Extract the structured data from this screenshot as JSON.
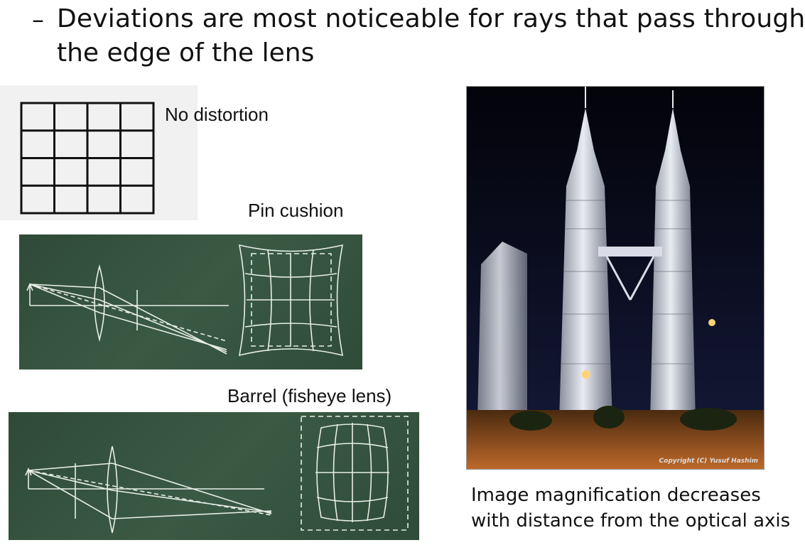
{
  "bullet": {
    "marker": "–",
    "line1": "Deviations are most noticeable for rays that pass through",
    "line2": "the edge of the lens"
  },
  "labels": {
    "no_distortion": "No distortion",
    "pin_cushion": "Pin cushion",
    "barrel": "Barrel (fisheye lens)"
  },
  "photo": {
    "copyright": "Copyright (C) Yusuf Hashim"
  },
  "caption": {
    "line1": "Image magnification decreases",
    "line2": "with distance from the optical axis"
  }
}
